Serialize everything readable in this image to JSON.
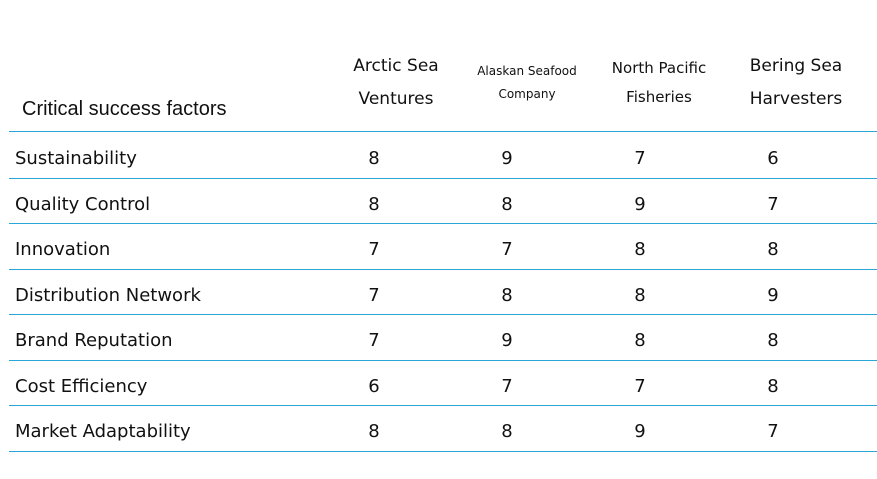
{
  "table": {
    "header": [
      "Critical success factors",
      "Arctic Sea Ventures",
      "Alaskan Seafood Company",
      "North Pacific Fisheries",
      "Bering Sea Harvesters"
    ],
    "rows": [
      [
        "Sustainability",
        8,
        9,
        7,
        6
      ],
      [
        "Quality Control",
        8,
        8,
        9,
        7
      ],
      [
        "Innovation",
        7,
        7,
        8,
        8
      ],
      [
        "Distribution Network",
        7,
        8,
        8,
        9
      ],
      [
        "Brand Reputation",
        7,
        9,
        8,
        8
      ],
      [
        "Cost Efficiency",
        6,
        7,
        7,
        8
      ],
      [
        "Market Adaptability",
        8,
        8,
        9,
        7
      ]
    ]
  }
}
